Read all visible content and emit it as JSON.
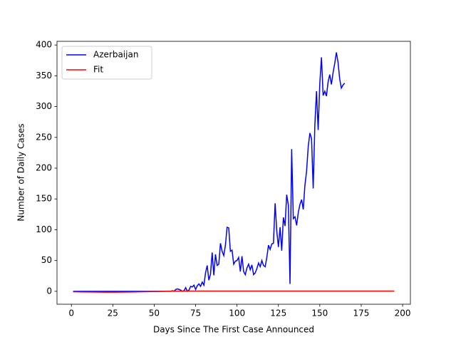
{
  "chart_data": {
    "type": "line",
    "xlabel": "Days Since The First Case Announced",
    "ylabel": "Number of Daily Cases",
    "xlim": [
      -8.7,
      204.7
    ],
    "ylim": [
      -21,
      406
    ],
    "xticks": [
      0,
      25,
      50,
      75,
      100,
      125,
      150,
      175,
      200
    ],
    "yticks": [
      0,
      50,
      100,
      150,
      200,
      250,
      300,
      350,
      400
    ],
    "legend": "upper left",
    "series": [
      {
        "name": "Azerbaijan",
        "color": "#0000ff",
        "x": [
          1,
          2,
          3,
          4,
          5,
          6,
          7,
          8,
          9,
          10,
          11,
          12,
          13,
          14,
          15,
          16,
          17,
          18,
          19,
          20,
          21,
          22,
          23,
          24,
          25,
          26,
          27,
          28,
          29,
          30,
          31,
          32,
          33,
          34,
          35,
          36,
          37,
          38,
          39,
          40,
          41,
          42,
          43,
          44,
          45,
          46,
          47,
          48,
          49,
          50,
          51,
          52,
          53,
          54,
          55,
          56,
          57,
          58,
          59,
          60,
          61,
          62,
          63,
          64,
          65,
          66,
          67,
          68,
          69,
          70,
          71,
          72,
          73,
          74,
          75,
          76,
          77,
          78,
          79,
          80,
          81,
          82,
          83,
          84,
          85,
          86,
          87,
          88,
          89,
          90,
          91,
          92,
          93,
          94,
          95,
          96,
          97,
          98,
          99,
          100,
          101,
          102,
          103,
          104,
          105,
          106,
          107,
          108,
          109,
          110,
          111,
          112,
          113,
          114,
          115,
          116,
          117,
          118,
          119,
          120,
          121,
          122,
          123,
          124,
          125,
          126,
          127,
          128,
          129,
          130,
          131,
          132,
          133,
          134,
          135,
          136,
          137,
          138,
          139,
          140,
          141,
          142,
          143,
          144,
          145,
          146,
          147,
          148,
          149,
          150,
          151,
          152,
          153,
          154,
          155,
          156,
          157,
          158,
          159,
          160,
          161,
          162,
          163,
          164,
          165
        ],
        "values": [
          0,
          0,
          0,
          0,
          0,
          0,
          0,
          0,
          0,
          0,
          0,
          0,
          0,
          0,
          0,
          0,
          0,
          0,
          0,
          0,
          0,
          0,
          0,
          0,
          0,
          0,
          0,
          0,
          0,
          0,
          0,
          0,
          0,
          0,
          0,
          0,
          0,
          0,
          0,
          0,
          0,
          0,
          0,
          0,
          0,
          0,
          0,
          0,
          0,
          0,
          0,
          0,
          0,
          0,
          0,
          0,
          0,
          0,
          0,
          0,
          1,
          0,
          3,
          4,
          3,
          2,
          0,
          1,
          6,
          0,
          2,
          8,
          7,
          10,
          3,
          9,
          12,
          8,
          15,
          10,
          30,
          42,
          18,
          28,
          63,
          26,
          60,
          42,
          44,
          78,
          65,
          58,
          75,
          104,
          103,
          65,
          67,
          44,
          49,
          50,
          55,
          32,
          57,
          32,
          27,
          38,
          44,
          35,
          43,
          27,
          30,
          37,
          46,
          40,
          50,
          42,
          40,
          55,
          75,
          68,
          77,
          78,
          143,
          98,
          72,
          104,
          66,
          120,
          106,
          157,
          140,
          12,
          231,
          118,
          121,
          107,
          128,
          141,
          149,
          133,
          172,
          195,
          235,
          257,
          248,
          167,
          270,
          325,
          262,
          338,
          380,
          318,
          325,
          317,
          340,
          352,
          336,
          355,
          370,
          388,
          372,
          345,
          330,
          335,
          338
        ]
      },
      {
        "name": "Fit",
        "color": "#ff0000",
        "x": [
          1,
          6,
          11,
          16,
          21,
          26,
          31,
          36,
          41,
          46,
          51,
          56,
          61,
          66,
          71,
          76,
          81,
          86,
          91,
          96,
          101,
          106,
          111,
          116,
          121,
          126,
          131,
          136,
          141,
          146,
          151,
          156,
          161,
          166,
          171,
          176,
          181,
          186,
          191,
          195
        ],
        "values": [
          -0.8,
          -1.0,
          -1.2,
          -1.4,
          -1.5,
          -1.5,
          -1.4,
          -1.2,
          -0.9,
          -0.6,
          -0.3,
          0,
          0.2,
          0.3,
          0.4,
          0.4,
          0.4,
          0.4,
          0.4,
          0.4,
          0.4,
          0.4,
          0.4,
          0.4,
          0.4,
          0.4,
          0.4,
          0.4,
          0.4,
          0.4,
          0.4,
          0.4,
          0.4,
          0.4,
          0.4,
          0.4,
          0.4,
          0.4,
          0.4,
          0.4
        ]
      }
    ]
  }
}
